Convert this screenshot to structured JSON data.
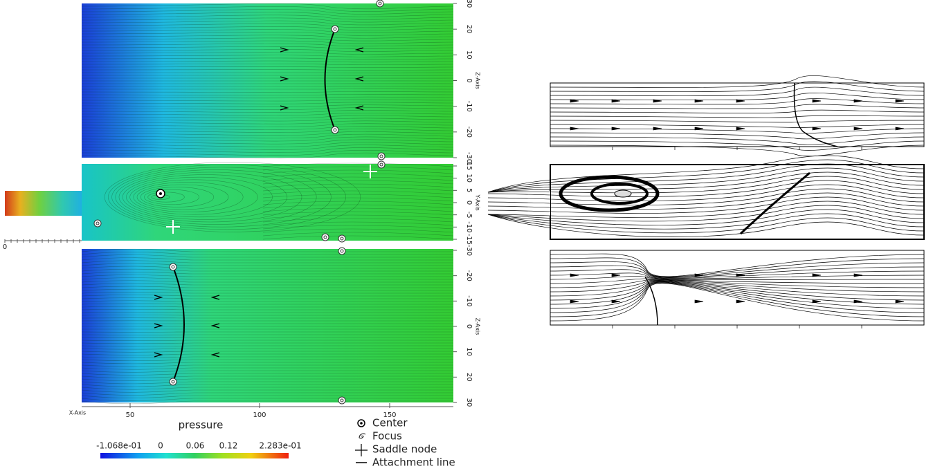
{
  "left_figure": {
    "top_panel": {
      "axis_title": "Z-Axis",
      "ticks": [
        "30",
        "20",
        "10",
        "0",
        "-10",
        "-20",
        "-30"
      ]
    },
    "middle_panel": {
      "axis_title": "Y-Axis",
      "ticks": [
        "15",
        "10",
        "5",
        "0",
        "-5",
        "-10",
        "-15"
      ],
      "origin_label": "0"
    },
    "bottom_panel": {
      "axis_title": "Z-Axis",
      "ticks": [
        "-30",
        "-20",
        "-10",
        "0",
        "10",
        "20",
        "30"
      ]
    },
    "x_axis": {
      "title": "X-Axis",
      "ticks": [
        "50",
        "100",
        "150"
      ]
    },
    "colorbar": {
      "title": "pressure",
      "labels": [
        "-1.068e-01",
        "0",
        "0.06",
        "0.12",
        "2.283e-01"
      ]
    }
  },
  "legend": {
    "items": [
      "Center",
      "Focus",
      "Saddle node",
      "Attachment line"
    ]
  }
}
